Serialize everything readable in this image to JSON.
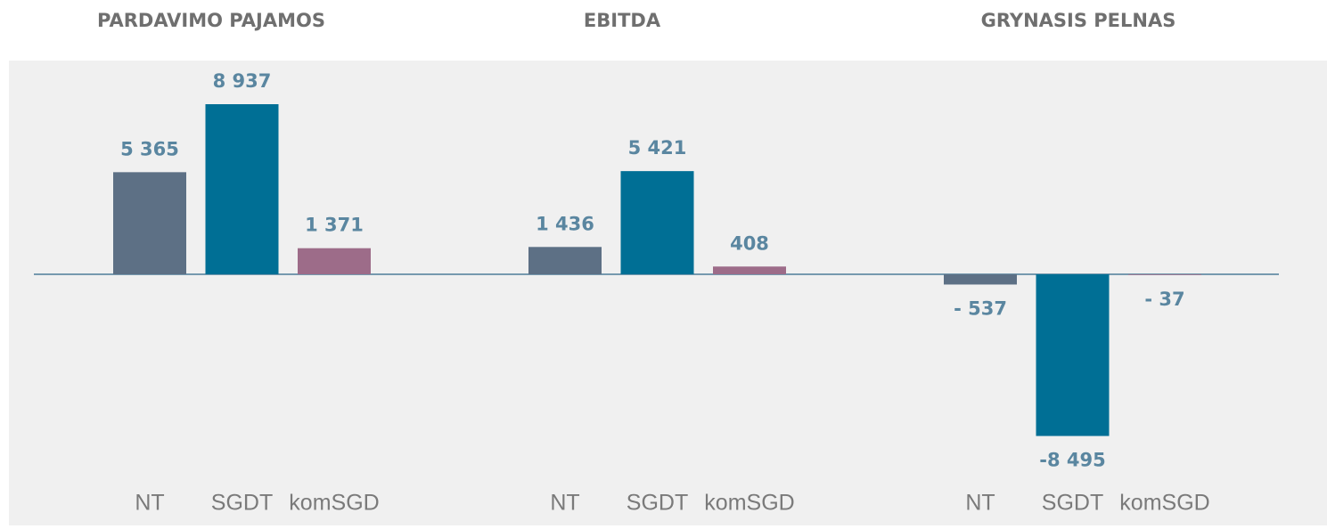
{
  "chart_data": [
    {
      "type": "bar",
      "title": "PARDAVIMO PAJAMOS",
      "categories": [
        "NT",
        "SGDT",
        "komSGD"
      ],
      "values": [
        5365,
        8937,
        1371
      ],
      "value_labels": [
        "5 365",
        "8 937",
        "1 371"
      ],
      "colors": [
        "#5d7085",
        "#006f95",
        "#9d6c89"
      ]
    },
    {
      "type": "bar",
      "title": "EBITDA",
      "categories": [
        "NT",
        "SGDT",
        "komSGD"
      ],
      "values": [
        1436,
        5421,
        408
      ],
      "value_labels": [
        "1 436",
        "5 421",
        "408"
      ],
      "colors": [
        "#5d7085",
        "#006f95",
        "#9d6c89"
      ]
    },
    {
      "type": "bar",
      "title": "GRYNASIS PELNAS",
      "categories": [
        "NT",
        "SGDT",
        "komSGD"
      ],
      "values": [
        -537,
        -8495,
        -37
      ],
      "value_labels": [
        "- 537",
        "-8 495",
        "- 37"
      ],
      "colors": [
        "#5d7085",
        "#006f95",
        "#9d6c89"
      ]
    }
  ]
}
